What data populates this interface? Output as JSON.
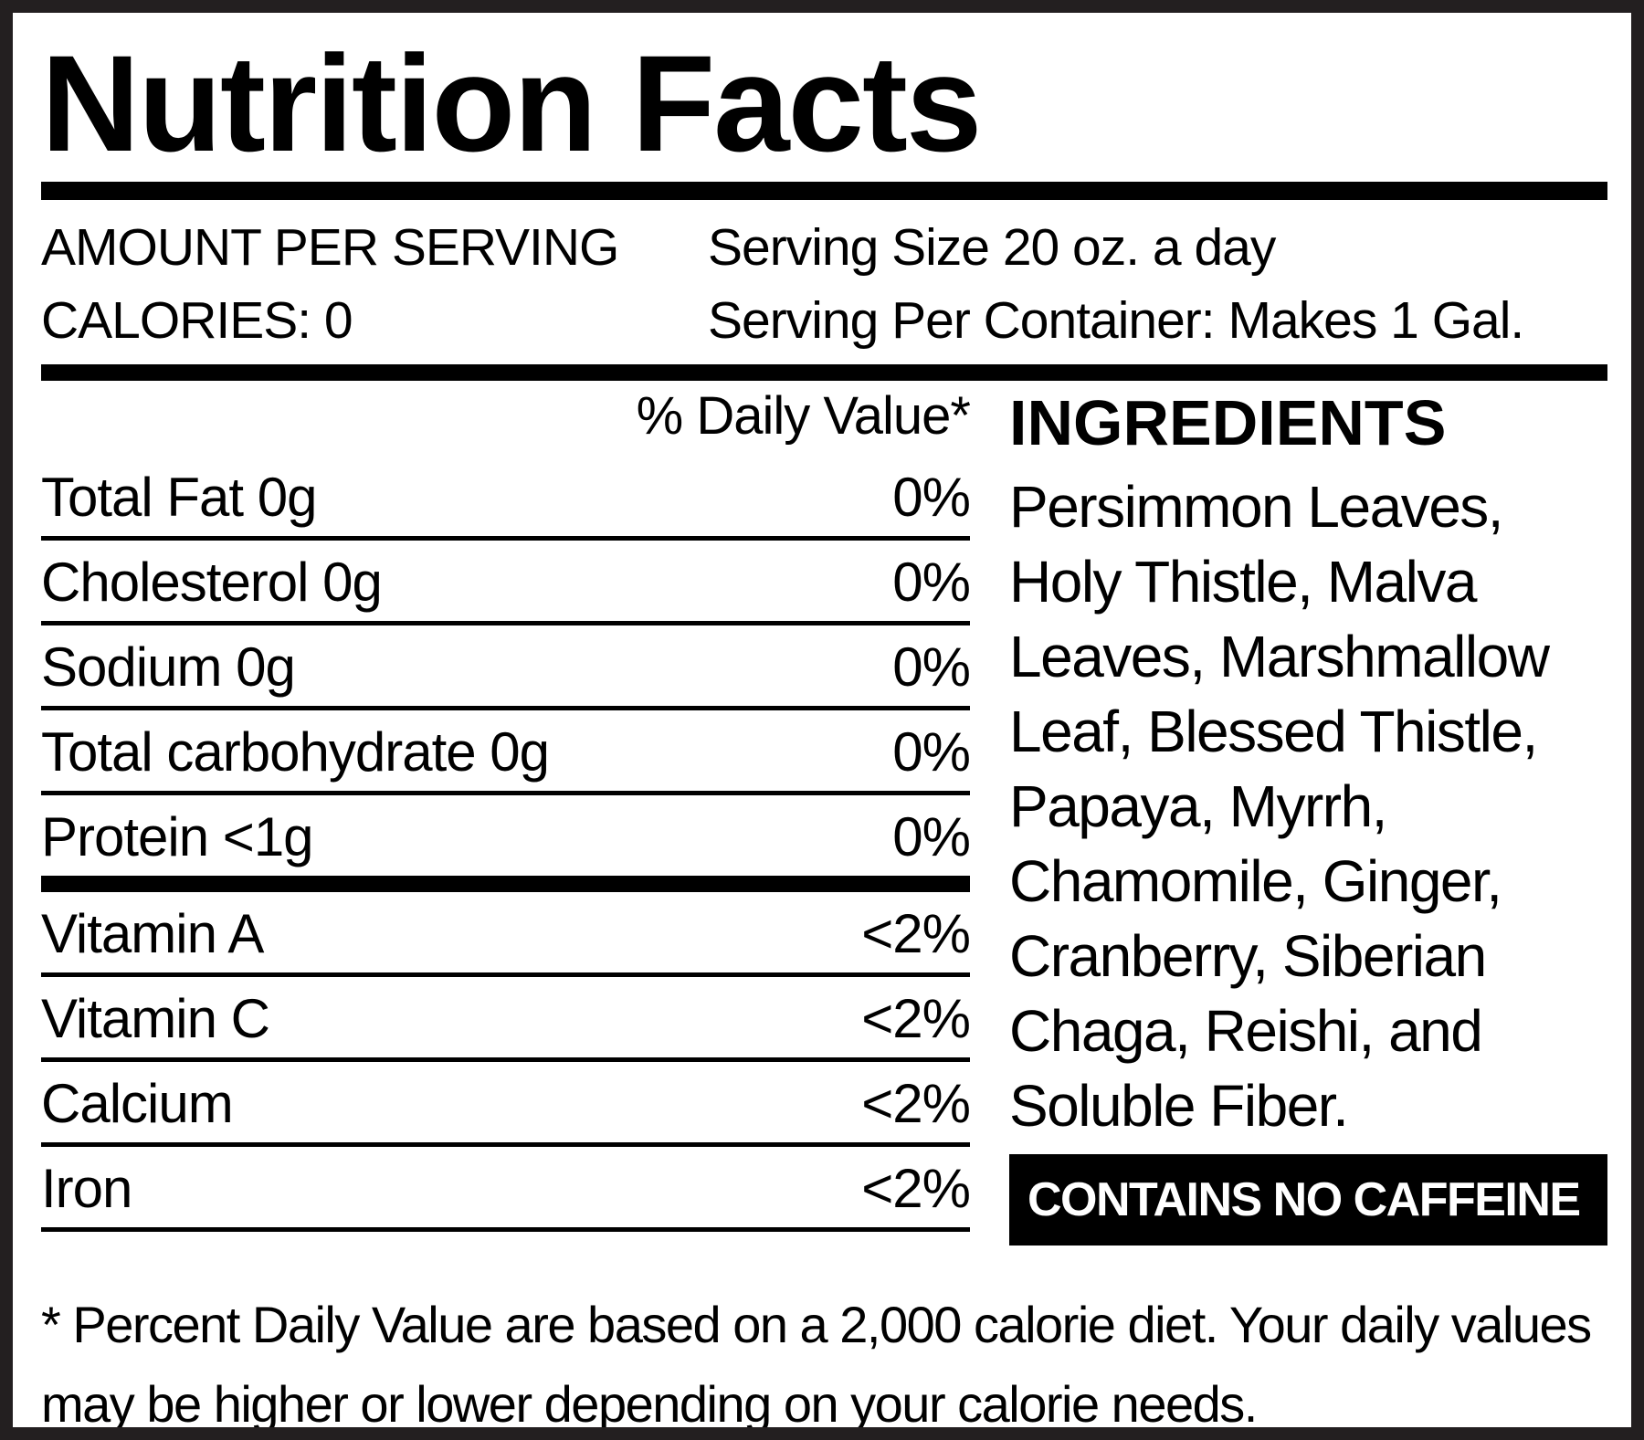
{
  "label": {
    "title": "Nutrition Facts",
    "header": {
      "amount_per_serving": "AMOUNT PER SERVING",
      "calories": "CALORIES: 0",
      "serving_size": "Serving Size 20 oz. a day",
      "servings_per_container": "Serving Per Container: Makes 1 Gal."
    },
    "daily_value_header": "% Daily Value*",
    "nutrients": [
      {
        "name": "Total Fat 0g",
        "daily_value": "0%"
      },
      {
        "name": "Cholesterol 0g",
        "daily_value": "0%"
      },
      {
        "name": "Sodium 0g",
        "daily_value": "0%"
      },
      {
        "name": "Total carbohydrate 0g",
        "daily_value": "0%"
      },
      {
        "name": "Protein <1g",
        "daily_value": "0%"
      },
      {
        "name": "Vitamin A",
        "daily_value": "<2%"
      },
      {
        "name": "Vitamin C",
        "daily_value": "<2%"
      },
      {
        "name": "Calcium",
        "daily_value": "<2%"
      },
      {
        "name": "Iron",
        "daily_value": "<2%"
      }
    ],
    "ingredients": {
      "heading": "INGREDIENTS",
      "text": "Persimmon Leaves, Holy Thistle, Malva Leaves, Marshmallow Leaf, Blessed Thistle, Papaya, Myrrh, Chamomile, Ginger, Cranberry, Siberian Chaga, Reishi, and Soluble Fiber."
    },
    "caffeine_badge": "CONTAINS NO CAFFEINE",
    "footnote": "* Percent Daily Value are based on a 2,000 calorie diet. Your daily values may be higher or lower depending on your calorie needs.",
    "colors": {
      "text": "#000000",
      "border": "#231f20",
      "background": "#ffffff",
      "badge_bg": "#000000",
      "badge_text": "#ffffff"
    }
  }
}
